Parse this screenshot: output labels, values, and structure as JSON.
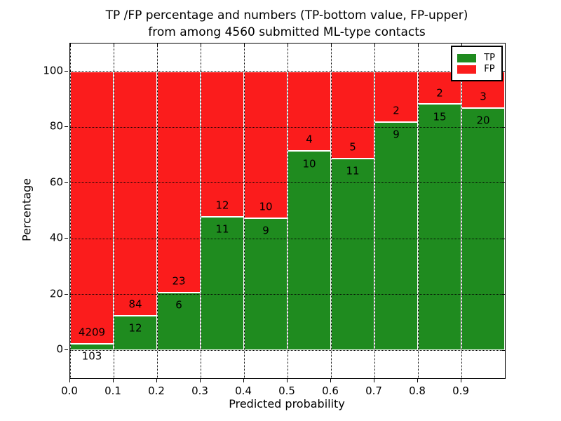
{
  "title": {
    "line1": "TP /FP percentage and numbers (TP-bottom value, FP-upper)",
    "line2": "from among 4560 submitted ML-type contacts"
  },
  "chart_data": {
    "type": "bar",
    "stacked": true,
    "title": "TP /FP percentage and numbers (TP-bottom value, FP-upper) from among 4560 submitted ML-type contacts",
    "xlabel": "Predicted probability",
    "ylabel": "Percentage",
    "xlim": [
      0.0,
      1.0
    ],
    "ylim": [
      -10,
      110
    ],
    "grid": true,
    "legend_position": "upper right",
    "bar_width": 0.1,
    "bin_starts": [
      0.0,
      0.1,
      0.2,
      0.3,
      0.4,
      0.5,
      0.6,
      0.7,
      0.8,
      0.9
    ],
    "xticks": [
      0.0,
      0.1,
      0.2,
      0.3,
      0.4,
      0.5,
      0.6,
      0.7,
      0.8,
      0.9
    ],
    "xtick_labels": [
      "0.0",
      "0.1",
      "0.2",
      "0.3",
      "0.4",
      "0.5",
      "0.6",
      "0.7",
      "0.8",
      "0.9"
    ],
    "yticks": [
      0,
      20,
      40,
      60,
      80,
      100
    ],
    "ytick_labels": [
      "0",
      "20",
      "40",
      "60",
      "80",
      "100"
    ],
    "series": [
      {
        "name": "TP",
        "color": "#1f8b1f",
        "counts": [
          103,
          12,
          6,
          11,
          9,
          10,
          11,
          9,
          15,
          20
        ]
      },
      {
        "name": "FP",
        "color": "#fb1c1c",
        "counts": [
          4209,
          84,
          23,
          12,
          10,
          4,
          5,
          2,
          2,
          3
        ]
      }
    ],
    "tp_percentages": [
      2.39,
      12.5,
      20.69,
      47.83,
      47.37,
      71.43,
      68.75,
      81.82,
      88.24,
      86.96
    ],
    "total_contacts": 4560
  },
  "colors": {
    "tp": "#1f8b1f",
    "fp": "#fb1c1c",
    "grid": "#000000",
    "frame": "#000000",
    "background": "#ffffff"
  }
}
